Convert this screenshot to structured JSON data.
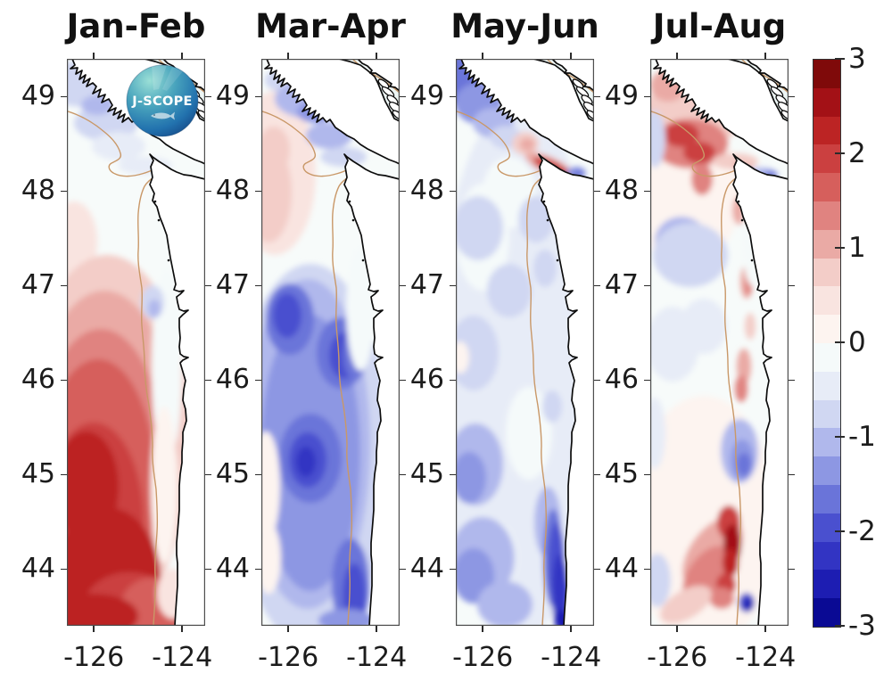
{
  "figure": {
    "logo_text": "J-SCOPE",
    "description": "Four-panel bimonthly ocean anomaly forecast maps for the Washington-Oregon coast with shared diverging colorbar"
  },
  "chart_data": {
    "type": "heatmap",
    "subtype": "geographic anomaly maps",
    "lat_range": [
      43.4,
      49.4
    ],
    "lon_range": [
      -126.61,
      -123.47
    ],
    "lat_tick_values": [
      49,
      48,
      47,
      46,
      45,
      44
    ],
    "lat_tick_labels": [
      "49",
      "48",
      "47",
      "46",
      "45",
      "44"
    ],
    "lon_tick_values": [
      -126,
      -124
    ],
    "lon_tick_labels": [
      "-126",
      "-124"
    ],
    "colorbar": {
      "range": [
        -3,
        3
      ],
      "n_bands": 20,
      "tick_values": [
        3,
        2,
        1,
        0,
        -1,
        -2,
        -3
      ],
      "tick_labels": [
        "3",
        "2",
        "1",
        "0",
        "-1",
        "-2",
        "-3"
      ],
      "colors": [
        "#7f0a0a",
        "#a31116",
        "#bc2424",
        "#cb4040",
        "#d65f5c",
        "#e08380",
        "#eaaaa5",
        "#f3cdc8",
        "#f9e4e0",
        "#fdf4f0",
        "#f5fafa",
        "#e7ecf7",
        "#d0d7f2",
        "#b0b8ec",
        "#8d97e3",
        "#6a74d9",
        "#4a50cf",
        "#3234c3",
        "#1d1db2",
        "#0a0a94"
      ]
    },
    "map_colors": {
      "coastline": "#0c0c0c",
      "land_fill": "#ffffff",
      "bathymetry_contour": "#c99868",
      "ocean_base": "#f7fbfa",
      "inland_water": "#edf6f5"
    },
    "blob_format": "[x, y, rx, ry, color_index_into_colorbar_colors, optional_rotation_deg] in 155x636 panel pixels",
    "panels": [
      {
        "title": "Jan-Feb",
        "has_logo": true,
        "summary": "Strong warm (red) anomaly offshore to the south and west, reaching the coast in the far south; weak cool band along Vancouver Island and the strait mouth; near-neutral strip along the central coast",
        "blobs": [
          [
            20,
            28,
            48,
            26,
            12
          ],
          [
            44,
            72,
            36,
            20,
            12
          ],
          [
            58,
            98,
            30,
            16,
            11
          ],
          [
            34,
            52,
            18,
            11,
            13
          ],
          [
            88,
            120,
            30,
            10,
            11
          ],
          [
            8,
            205,
            26,
            45,
            8
          ],
          [
            15,
            330,
            42,
            65,
            7
          ],
          [
            10,
            365,
            36,
            52,
            6
          ],
          [
            45,
            425,
            95,
            205,
            7
          ],
          [
            42,
            435,
            82,
            175,
            6
          ],
          [
            38,
            455,
            72,
            152,
            5
          ],
          [
            35,
            475,
            64,
            138,
            4
          ],
          [
            30,
            520,
            56,
            112,
            3
          ],
          [
            22,
            480,
            36,
            62,
            2
          ],
          [
            45,
            585,
            60,
            82,
            2
          ],
          [
            70,
            618,
            52,
            42,
            3
          ],
          [
            96,
            616,
            36,
            34,
            4
          ],
          [
            30,
            625,
            50,
            25,
            2
          ],
          [
            112,
            345,
            17,
            110,
            10
          ],
          [
            109,
            478,
            15,
            88,
            9
          ],
          [
            96,
            273,
            13,
            19,
            12
          ],
          [
            98,
            280,
            7,
            10,
            13
          ],
          [
            119,
            600,
            18,
            28,
            8
          ]
        ]
      },
      {
        "title": "Mar-Apr",
        "has_logo": false,
        "summary": "Broad cool (blue) anomaly offshore, strongest between 45N and 46.5N and near the southern coast; weak warm patch in the northwest corner; cool band along Vancouver Island",
        "blobs": [
          [
            15,
            128,
            46,
            92,
            8
          ],
          [
            8,
            150,
            26,
            56,
            7
          ],
          [
            14,
            102,
            18,
            26,
            7
          ],
          [
            30,
            24,
            26,
            15,
            12
          ],
          [
            55,
            45,
            40,
            22,
            13
          ],
          [
            60,
            60,
            20,
            12,
            14
          ],
          [
            76,
            86,
            26,
            15,
            13
          ],
          [
            92,
            110,
            26,
            11,
            12
          ],
          [
            55,
            445,
            88,
            215,
            12
          ],
          [
            52,
            432,
            70,
            185,
            13
          ],
          [
            55,
            442,
            56,
            155,
            14
          ],
          [
            32,
            292,
            27,
            40,
            15
          ],
          [
            29,
            288,
            16,
            25,
            16
          ],
          [
            90,
            330,
            28,
            40,
            15
          ],
          [
            93,
            333,
            17,
            26,
            16
          ],
          [
            105,
            332,
            13,
            28,
            15
          ],
          [
            55,
            448,
            35,
            50,
            15
          ],
          [
            52,
            450,
            21,
            31,
            16
          ],
          [
            50,
            452,
            11,
            17,
            17
          ],
          [
            100,
            590,
            21,
            52,
            15
          ],
          [
            104,
            602,
            13,
            36,
            16
          ],
          [
            95,
            630,
            31,
            13,
            14
          ],
          [
            111,
            280,
            16,
            70,
            10
          ],
          [
            5,
            480,
            16,
            62,
            9
          ],
          [
            8,
            560,
            14,
            40,
            9
          ]
        ]
      },
      {
        "title": "May-Jun",
        "has_logo": false,
        "summary": "Weak cool anomaly over most of the domain; stronger cool band hugging the southern coast; cool water along Vancouver Island; small warm streak at the Strait of Juan de Fuca entrance",
        "blobs": [
          [
            70,
            350,
            92,
            300,
            11
          ],
          [
            30,
            200,
            30,
            60,
            10
          ],
          [
            82,
            420,
            26,
            52,
            10
          ],
          [
            42,
            560,
            26,
            42,
            10
          ],
          [
            60,
            150,
            30,
            40,
            10
          ],
          [
            8,
            25,
            23,
            30,
            15
          ],
          [
            25,
            50,
            26,
            23,
            14
          ],
          [
            42,
            72,
            23,
            17,
            13
          ],
          [
            56,
            88,
            18,
            13,
            12
          ],
          [
            78,
            95,
            15,
            13,
            7
          ],
          [
            80,
            96,
            8,
            7,
            6
          ],
          [
            105,
            120,
            30,
            10,
            6,
            25
          ],
          [
            108,
            122,
            23,
            7,
            3,
            25
          ],
          [
            113,
            126,
            13,
            5,
            2,
            25
          ],
          [
            135,
            128,
            11,
            7,
            14
          ],
          [
            137,
            129,
            6,
            4,
            15
          ],
          [
            25,
            190,
            28,
            36,
            12
          ],
          [
            90,
            180,
            20,
            26,
            12
          ],
          [
            20,
            330,
            28,
            42,
            12
          ],
          [
            60,
            260,
            25,
            30,
            12
          ],
          [
            100,
            235,
            13,
            21,
            12
          ],
          [
            108,
            390,
            11,
            18,
            12
          ],
          [
            22,
            455,
            31,
            46,
            13
          ],
          [
            15,
            470,
            19,
            29,
            14
          ],
          [
            30,
            560,
            36,
            46,
            13
          ],
          [
            20,
            580,
            23,
            31,
            14
          ],
          [
            55,
            612,
            31,
            26,
            13
          ],
          [
            103,
            520,
            15,
            40,
            13
          ],
          [
            109,
            560,
            11,
            55,
            15
          ],
          [
            113,
            565,
            9,
            45,
            16
          ],
          [
            117,
            600,
            9,
            45,
            17
          ],
          [
            120,
            630,
            8,
            12,
            18
          ],
          [
            5,
            335,
            10,
            18,
            9
          ]
        ]
      },
      {
        "title": "Jul-Aug",
        "has_logo": false,
        "summary": "Near-neutral overall; warm patch off the strait entrance and along Vancouver Island; warm streaks and a strong warm spot along the southern coast; scattered cool blobs offshore and a cool spot at the far south coast",
        "blobs": [
          [
            60,
            520,
            82,
            142,
            9
          ],
          [
            40,
            150,
            62,
            82,
            9
          ],
          [
            60,
            60,
            46,
            36,
            7
          ],
          [
            25,
            55,
            30,
            25,
            7
          ],
          [
            45,
            95,
            42,
            28,
            5
          ],
          [
            35,
            85,
            20,
            14,
            3
          ],
          [
            55,
            105,
            18,
            12,
            3
          ],
          [
            58,
            135,
            12,
            18,
            5
          ],
          [
            20,
            30,
            20,
            18,
            6
          ],
          [
            30,
            12,
            10,
            7,
            4
          ],
          [
            95,
            115,
            26,
            9,
            7
          ],
          [
            108,
            124,
            16,
            5,
            6,
            20
          ],
          [
            125,
            128,
            16,
            6,
            13
          ],
          [
            135,
            130,
            8,
            4,
            15
          ],
          [
            5,
            90,
            12,
            32,
            12
          ],
          [
            35,
            205,
            30,
            28,
            13
          ],
          [
            45,
            220,
            42,
            36,
            12
          ],
          [
            25,
            320,
            30,
            42,
            11
          ],
          [
            60,
            300,
            26,
            31,
            11
          ],
          [
            100,
            170,
            8,
            16,
            6
          ],
          [
            108,
            250,
            7,
            19,
            6
          ],
          [
            110,
            255,
            4,
            10,
            5
          ],
          [
            112,
            300,
            6,
            15,
            7
          ],
          [
            105,
            345,
            8,
            20,
            6
          ],
          [
            102,
            370,
            7,
            15,
            5
          ],
          [
            100,
            440,
            21,
            36,
            13
          ],
          [
            103,
            450,
            13,
            23,
            14
          ],
          [
            105,
            455,
            8,
            13,
            15
          ],
          [
            70,
            555,
            46,
            26,
            6,
            -55
          ],
          [
            62,
            578,
            36,
            19,
            5,
            -55
          ],
          [
            88,
            520,
            13,
            19,
            3
          ],
          [
            92,
            545,
            10,
            23,
            1
          ],
          [
            90,
            565,
            9,
            16,
            2
          ],
          [
            85,
            590,
            11,
            13,
            3
          ],
          [
            80,
            605,
            14,
            12,
            5
          ],
          [
            40,
            612,
            32,
            16,
            7,
            -30
          ],
          [
            108,
            610,
            9,
            11,
            16
          ],
          [
            110,
            612,
            5,
            7,
            18
          ],
          [
            5,
            420,
            12,
            40,
            11
          ],
          [
            8,
            585,
            15,
            30,
            12
          ],
          [
            115,
            200,
            12,
            55,
            10
          ]
        ]
      }
    ]
  }
}
